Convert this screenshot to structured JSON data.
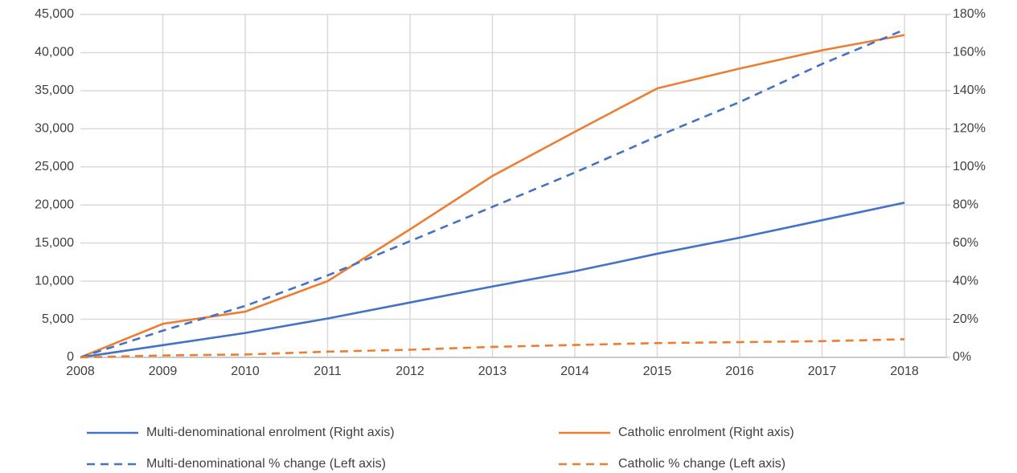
{
  "chart_data": {
    "type": "line",
    "categories": [
      "2008",
      "2009",
      "2010",
      "2011",
      "2012",
      "2013",
      "2014",
      "2015",
      "2016",
      "2017",
      "2018"
    ],
    "series": [
      {
        "name": "Multi-denominational enrolment (Right axis)",
        "color": "#4472c4",
        "dash": false,
        "values": [
          0,
          1600,
          3200,
          5100,
          7200,
          9300,
          11300,
          13600,
          15700,
          18000,
          20300
        ]
      },
      {
        "name": "Catholic enrolment (Right axis)",
        "color": "#ed7d31",
        "dash": false,
        "values": [
          0,
          4400,
          6000,
          10000,
          16800,
          23800,
          29600,
          35300,
          37900,
          40300,
          42300
        ]
      },
      {
        "name": "Multi-denominational % change (Left axis)",
        "color": "#4472c4",
        "dash": true,
        "axis": "y2",
        "values": [
          0,
          14,
          27,
          43,
          61,
          79,
          97,
          116,
          134,
          154,
          172
        ]
      },
      {
        "name": "Catholic % change (Left axis)",
        "color": "#ed7d31",
        "dash": true,
        "axis": "y2",
        "values": [
          0,
          1,
          1.5,
          3,
          4,
          5.5,
          6.5,
          7.5,
          8,
          8.5,
          9.5
        ]
      }
    ],
    "ylim": [
      0,
      45000
    ],
    "yticks": [
      0,
      {
        "value": 5000,
        "label": "5,000"
      },
      {
        "value": 10000,
        "label": "10,000"
      },
      {
        "value": 15000,
        "label": "15,000"
      },
      {
        "value": 20000,
        "label": "20,000"
      },
      {
        "value": 25000,
        "label": "25,000"
      },
      {
        "value": 30000,
        "label": "30,000"
      },
      {
        "value": 35000,
        "label": "35,000"
      },
      {
        "value": 40000,
        "label": "40,000"
      },
      {
        "value": 45000,
        "label": "45,000"
      }
    ],
    "y2lim": [
      0,
      180
    ],
    "y2ticks": [
      {
        "value": 0,
        "label": "0%"
      },
      {
        "value": 20,
        "label": "20%"
      },
      {
        "value": 40,
        "label": "40%"
      },
      {
        "value": 60,
        "label": "60%"
      },
      {
        "value": 80,
        "label": "80%"
      },
      {
        "value": 100,
        "label": "100%"
      },
      {
        "value": 120,
        "label": "120%"
      },
      {
        "value": 140,
        "label": "140%"
      },
      {
        "value": 160,
        "label": "160%"
      },
      {
        "value": 180,
        "label": "180%"
      }
    ],
    "grid": true,
    "legend": "bottom"
  }
}
